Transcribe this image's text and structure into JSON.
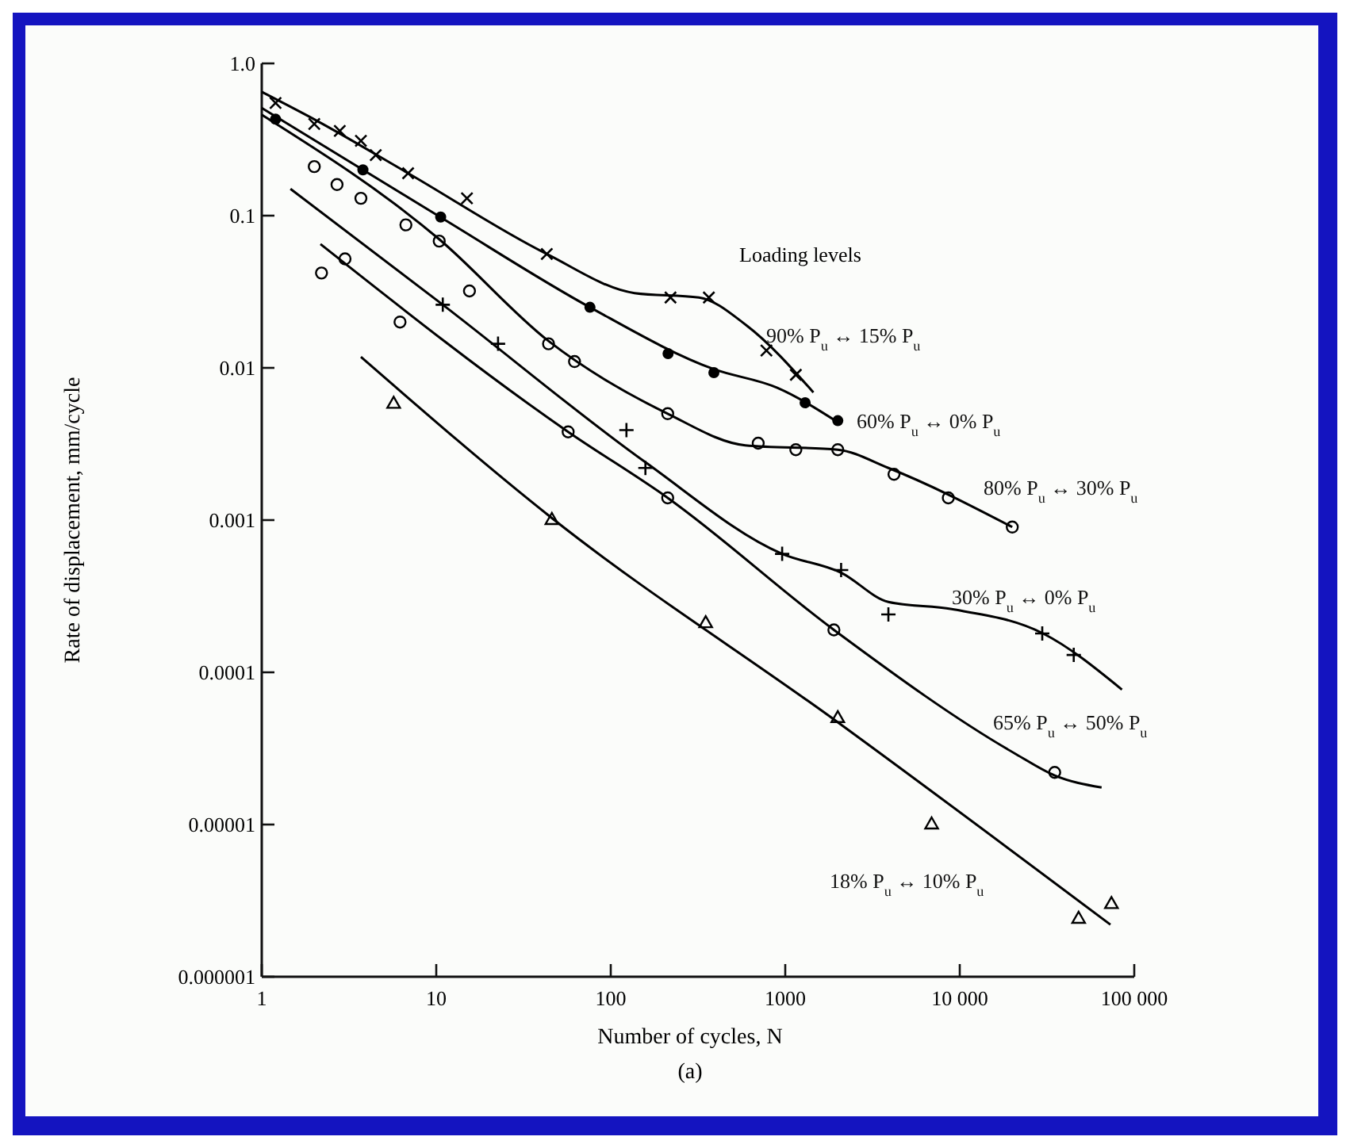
{
  "chart_data": {
    "type": "scatter",
    "xlabel": "Number of cycles, N",
    "ylabel": "Rate of displacement, mm/cycle",
    "legend_title": "Loading levels",
    "annotations": [
      "(a)"
    ],
    "log": "xy",
    "xlim": [
      1,
      100000
    ],
    "ylim": [
      1e-06,
      1
    ],
    "xticks": [
      1,
      10,
      100,
      1000,
      {
        "value": 10000,
        "label": "10 000"
      },
      {
        "value": 100000,
        "label": "100 000"
      }
    ],
    "yticks": [
      {
        "value": 1,
        "label": "1.0"
      },
      0.1,
      0.01,
      0.001,
      0.0001,
      {
        "value": 1e-05,
        "label": "0.00001"
      },
      {
        "value": 1e-06,
        "label": "0.000001"
      }
    ],
    "series": [
      {
        "marker": "cross",
        "color": "#000000",
        "x": [
          1.2,
          2,
          2.8,
          3.7,
          4.5,
          6.9,
          15,
          43,
          220,
          365,
          780,
          1150
        ],
        "values": [
          0.55,
          0.4,
          0.36,
          0.31,
          0.25,
          0.19,
          0.13,
          0.056,
          0.029,
          0.029,
          0.013,
          0.009
        ]
      },
      {
        "marker": "circle",
        "color": "#000000",
        "x": [
          1.2,
          3.8,
          10.6,
          76,
          213,
          390,
          1300,
          2000
        ],
        "values": [
          0.43,
          0.2,
          0.098,
          0.025,
          0.0124,
          0.0093,
          0.0059,
          0.0045
        ]
      },
      {
        "marker": "circle-open",
        "color": "#000000",
        "x": [
          2,
          2.7,
          3.7,
          6.7,
          10.4,
          15.5,
          44,
          62,
          212,
          700,
          1150,
          2000,
          4200,
          8600,
          20000
        ],
        "values": [
          0.21,
          0.16,
          0.13,
          0.087,
          0.068,
          0.032,
          0.0144,
          0.011,
          0.005,
          0.0032,
          0.0029,
          0.0029,
          0.002,
          0.0014,
          0.0009
        ]
      },
      {
        "marker": "plus",
        "color": "#000000",
        "x": [
          10.9,
          22.6,
          123,
          158,
          960,
          2090,
          3900,
          29700,
          45000
        ],
        "values": [
          0.026,
          0.0144,
          0.0039,
          0.0022,
          0.0006,
          0.00047,
          0.00024,
          0.00018,
          0.00013
        ]
      },
      {
        "marker": "circle-open",
        "color": "#000000",
        "x": [
          2.2,
          3,
          6.2,
          57,
          212,
          1900,
          35000
        ],
        "values": [
          0.042,
          0.052,
          0.02,
          0.0038,
          0.0014,
          0.00019,
          2.2e-05
        ]
      },
      {
        "marker": "triangle",
        "color": "#000000",
        "x": [
          5.7,
          46,
          350,
          2000,
          6900,
          48000,
          74000
        ],
        "values": [
          0.0058,
          0.001,
          0.00021,
          5e-05,
          1e-05,
          2.4e-06,
          3e-06
        ]
      },
      {
        "type": "line",
        "name": "90% P$_{u}$ ↔ 15% P$_{u}$",
        "color": "#000000",
        "marker": "none",
        "x": [
          1,
          2.07,
          6.9,
          43,
          137,
          320,
          600,
          1450
        ],
        "values": [
          0.65,
          0.42,
          0.19,
          0.056,
          0.031,
          0.029,
          0.019,
          0.0069
        ]
      },
      {
        "type": "line",
        "name": "60% P$_{u}$ ↔ 0% P$_{u}$",
        "color": "#000000",
        "marker": "none",
        "x": [
          1,
          11,
          76,
          390,
          900,
          2000
        ],
        "values": [
          0.51,
          0.095,
          0.025,
          0.0098,
          0.0074,
          0.0044
        ]
      },
      {
        "type": "line",
        "name": "80% P$_{u}$ ↔ 30% P$_{u}$",
        "color": "#000000",
        "marker": "none",
        "x": [
          1,
          10.4,
          44,
          212,
          590,
          2000,
          3900,
          20000
        ],
        "values": [
          0.46,
          0.07,
          0.015,
          0.005,
          0.0031,
          0.0029,
          0.0022,
          0.0009
        ]
      },
      {
        "type": "line",
        "name": "30% P$_{u}$ ↔ 0% P$_{u}$",
        "color": "#000000",
        "marker": "none",
        "x": [
          1.46,
          10.9,
          158,
          960,
          2100,
          3900,
          9000,
          30000,
          85000
        ],
        "values": [
          0.15,
          0.026,
          0.0024,
          0.0006,
          0.00045,
          0.00029,
          0.00026,
          0.00018,
          7.7e-05
        ]
      },
      {
        "type": "line",
        "name": "65% P$_{u}$ ↔ 50% P$_{u}$",
        "color": "#000000",
        "marker": "none",
        "x": [
          2.17,
          57,
          212,
          1900,
          21000,
          35000,
          65000
        ],
        "values": [
          0.065,
          0.0038,
          0.0014,
          0.00019,
          2.9e-05,
          2.1e-05,
          1.75e-05
        ]
      },
      {
        "type": "line",
        "name": "18% P$_{u}$ ↔ 10% P$_{u}$",
        "color": "#000000",
        "marker": "none",
        "x": [
          3.7,
          46,
          2000,
          73000
        ],
        "values": [
          0.0118,
          0.00103,
          4.7e-05,
          2.2e-06
        ]
      }
    ]
  }
}
